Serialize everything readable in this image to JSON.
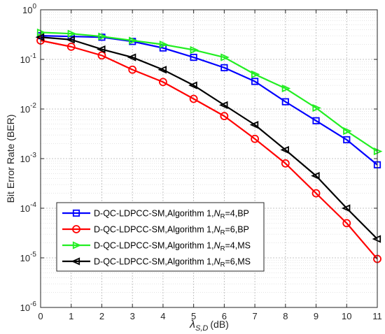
{
  "chart_data": {
    "type": "line",
    "title": "",
    "xlabel": {
      "symbol": "λ",
      "subscript": "S,D",
      "unit": "(dB)"
    },
    "ylabel": "Bit Error Rate (BER)",
    "yscale": "log",
    "xlim": [
      0,
      11
    ],
    "ylim": [
      1e-06,
      1
    ],
    "x_ticks": [
      "0",
      "1",
      "2",
      "3",
      "4",
      "5",
      "6",
      "7",
      "8",
      "9",
      "10",
      "11"
    ],
    "y_ticks": [
      {
        "base": "10",
        "exp": "-6"
      },
      {
        "base": "10",
        "exp": "-5"
      },
      {
        "base": "10",
        "exp": "-4"
      },
      {
        "base": "10",
        "exp": "-3"
      },
      {
        "base": "10",
        "exp": "-2"
      },
      {
        "base": "10",
        "exp": "-1"
      },
      {
        "base": "10",
        "exp": "0"
      }
    ],
    "grid": true,
    "minor_grid": true,
    "legend_position": "bottom-left",
    "x": [
      0,
      1,
      2,
      3,
      4,
      5,
      6,
      7,
      8,
      9,
      10,
      11
    ],
    "series": [
      {
        "name": {
          "prefix": "D-QC-LDPCC-SM,Algorithm 1,",
          "var": "N",
          "sub": "R",
          "suffix": "=4,BP"
        },
        "color": "#0000ff",
        "marker": "square",
        "values": [
          0.3,
          0.29,
          0.28,
          0.23,
          0.17,
          0.11,
          0.068,
          0.036,
          0.014,
          0.0058,
          0.0024,
          0.00075
        ]
      },
      {
        "name": {
          "prefix": "D-QC-LDPCC-SM,Algorithm 1,",
          "var": "N",
          "sub": "R",
          "suffix": "=6,BP"
        },
        "color": "#ff0000",
        "marker": "circle",
        "values": [
          0.24,
          0.18,
          0.12,
          0.062,
          0.035,
          0.016,
          0.0072,
          0.0025,
          0.0008,
          0.0002,
          5e-05,
          9.5e-06
        ]
      },
      {
        "name": {
          "prefix": "D-QC-LDPCC-SM,Algorithm 1,",
          "var": "N",
          "sub": "R",
          "suffix": "=4,MS"
        },
        "color": "#22ee22",
        "marker": "triangle-right",
        "values": [
          0.35,
          0.33,
          0.29,
          0.24,
          0.2,
          0.155,
          0.11,
          0.05,
          0.026,
          0.0105,
          0.0036,
          0.0014
        ]
      },
      {
        "name": {
          "prefix": "D-QC-LDPCC-SM,Algorithm 1,",
          "var": "N",
          "sub": "R",
          "suffix": "=6,MS"
        },
        "color": "#000000",
        "marker": "triangle-left",
        "values": [
          0.28,
          0.25,
          0.16,
          0.11,
          0.062,
          0.03,
          0.012,
          0.0048,
          0.0015,
          0.00045,
          0.0001,
          2.4e-05
        ]
      }
    ]
  }
}
